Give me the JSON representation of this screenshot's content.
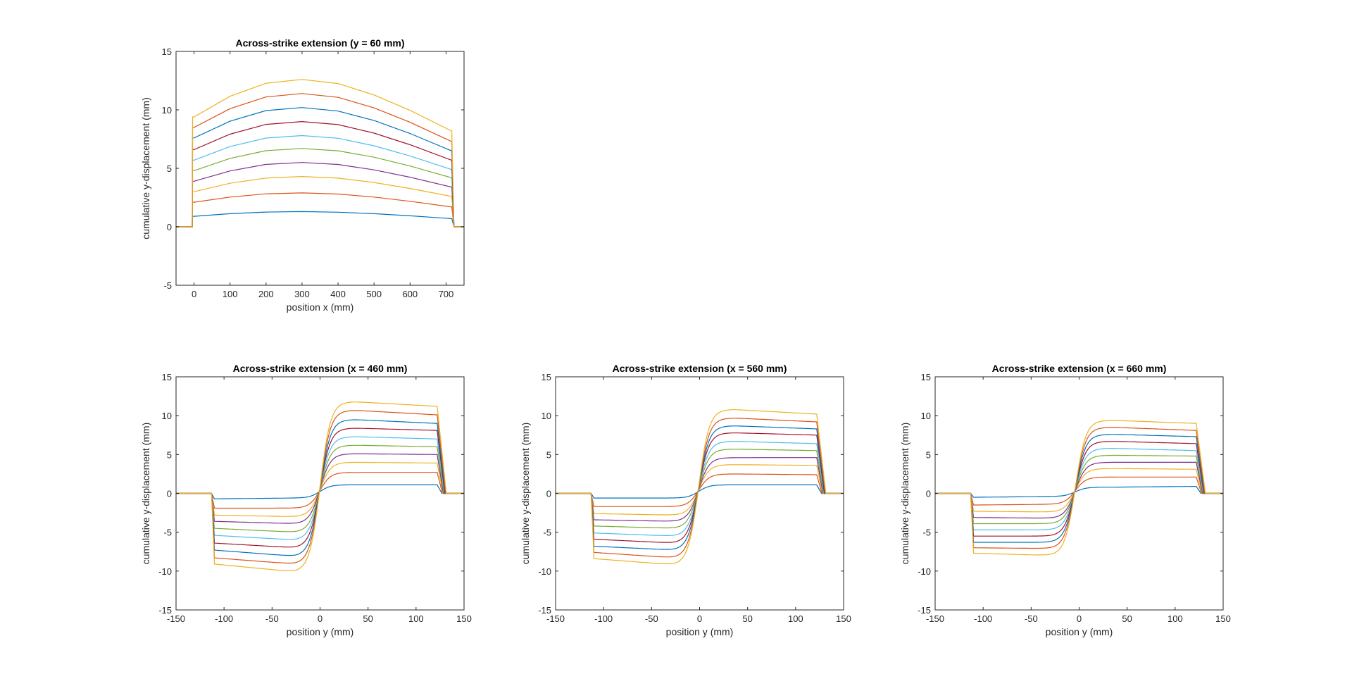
{
  "colors": [
    "#0072BD",
    "#D95319",
    "#EDB120",
    "#7E2F8E",
    "#77AC30",
    "#4DBEEE",
    "#A2142F",
    "#0072BD",
    "#D95319",
    "#EDB120"
  ],
  "chart_data": [
    {
      "type": "line",
      "title": "Across-strike extension (y = 60 mm)",
      "xlabel": "position x (mm)",
      "ylabel": "cumulative y-displacement (mm)",
      "xlim": [
        -50,
        750
      ],
      "ylim": [
        -5,
        15
      ],
      "xticks": [
        "0",
        "100",
        "200",
        "300",
        "400",
        "500",
        "600",
        "700"
      ],
      "xtick_values": [
        0,
        100,
        200,
        300,
        400,
        500,
        600,
        700
      ],
      "yticks": [
        "-5",
        "0",
        "5",
        "10",
        "15"
      ],
      "ytick_values": [
        -5,
        0,
        5,
        10,
        15
      ],
      "grid": false,
      "x": [
        -50,
        -5,
        -4,
        0,
        100,
        200,
        300,
        400,
        500,
        600,
        715,
        716,
        722,
        750
      ],
      "series": [
        {
          "y": [
            0,
            0,
            0.9,
            0.9,
            1.12,
            1.26,
            1.3,
            1.25,
            1.12,
            0.94,
            0.7,
            0.7,
            0,
            0
          ]
        },
        {
          "y": [
            0,
            0,
            2.1,
            2.1,
            2.54,
            2.82,
            2.9,
            2.8,
            2.54,
            2.18,
            1.7,
            1.7,
            0,
            0
          ]
        },
        {
          "y": [
            0,
            0,
            3.0,
            3.0,
            3.72,
            4.17,
            4.3,
            4.16,
            3.79,
            3.28,
            2.6,
            2.6,
            0,
            0
          ]
        },
        {
          "y": [
            0,
            0,
            3.9,
            3.9,
            4.78,
            5.34,
            5.5,
            5.33,
            4.87,
            4.24,
            3.4,
            3.4,
            0,
            0
          ]
        },
        {
          "y": [
            0,
            0,
            4.8,
            4.8,
            5.85,
            6.51,
            6.7,
            6.5,
            5.95,
            5.2,
            4.2,
            4.2,
            0,
            0
          ]
        },
        {
          "y": [
            0,
            0,
            5.7,
            5.7,
            6.86,
            7.59,
            7.8,
            7.57,
            6.93,
            6.06,
            4.9,
            4.9,
            0,
            0
          ]
        },
        {
          "y": [
            0,
            0,
            6.6,
            6.6,
            7.92,
            8.76,
            9.0,
            8.74,
            8.01,
            7.02,
            5.7,
            5.7,
            0,
            0
          ]
        },
        {
          "y": [
            0,
            0,
            7.6,
            7.6,
            9.03,
            9.94,
            10.2,
            9.9,
            9.09,
            7.98,
            6.5,
            6.5,
            0,
            0
          ]
        },
        {
          "y": [
            0,
            0,
            8.5,
            8.5,
            10.1,
            11.11,
            11.4,
            11.07,
            10.17,
            8.94,
            7.3,
            7.3,
            0,
            0
          ]
        },
        {
          "y": [
            0,
            0,
            9.4,
            9.4,
            11.16,
            12.28,
            12.6,
            12.25,
            11.28,
            9.96,
            8.2,
            8.2,
            0,
            0
          ]
        }
      ]
    },
    {
      "type": "line",
      "title": "Across-strike extension (x = 460 mm)",
      "xlabel": "position y (mm)",
      "ylabel": "cumulative y-displacement (mm)",
      "xlim": [
        -150,
        150
      ],
      "ylim": [
        -15,
        15
      ],
      "xticks": [
        "-150",
        "-100",
        "-50",
        "0",
        "50",
        "100",
        "150"
      ],
      "xtick_values": [
        -150,
        -100,
        -50,
        0,
        50,
        100,
        150
      ],
      "yticks": [
        "-15",
        "-10",
        "-5",
        "0",
        "5",
        "10",
        "15"
      ],
      "ytick_values": [
        -15,
        -10,
        -5,
        0,
        5,
        10,
        15
      ],
      "grid": false,
      "center_y": 0,
      "series_levels": {
        "left_edge": [
          -0.7,
          -1.9,
          -2.8,
          -3.6,
          -4.5,
          -5.4,
          -6.4,
          -7.3,
          -8.3,
          -9.1
        ],
        "left_inner": [
          -0.6,
          -1.9,
          -3.0,
          -3.9,
          -5.0,
          -6.0,
          -7.0,
          -8.1,
          -9.1,
          -10.1
        ],
        "right_inner": [
          1.1,
          2.7,
          4.0,
          5.1,
          6.2,
          7.3,
          8.4,
          9.5,
          10.7,
          11.8
        ],
        "right_edge": [
          1.1,
          2.7,
          3.9,
          5.0,
          6.0,
          7.0,
          8.1,
          9.0,
          10.1,
          11.2
        ]
      }
    },
    {
      "type": "line",
      "title": "Across-strike extension (x = 560 mm)",
      "xlabel": "position y (mm)",
      "ylabel": "cumulative y-displacement (mm)",
      "xlim": [
        -150,
        150
      ],
      "ylim": [
        -15,
        15
      ],
      "xticks": [
        "-150",
        "-100",
        "-50",
        "0",
        "50",
        "100",
        "150"
      ],
      "xtick_values": [
        -150,
        -100,
        -50,
        0,
        50,
        100,
        150
      ],
      "yticks": [
        "-15",
        "-10",
        "-5",
        "0",
        "5",
        "10",
        "15"
      ],
      "ytick_values": [
        -15,
        -10,
        -5,
        0,
        5,
        10,
        15
      ],
      "grid": false,
      "center_y": -1,
      "series_levels": {
        "left_edge": [
          -0.6,
          -1.7,
          -2.6,
          -3.4,
          -4.2,
          -5.1,
          -5.9,
          -6.8,
          -7.6,
          -8.4
        ],
        "left_inner": [
          -0.6,
          -1.7,
          -2.8,
          -3.6,
          -4.5,
          -5.5,
          -6.4,
          -7.3,
          -8.3,
          -9.2
        ],
        "right_inner": [
          1.1,
          2.5,
          3.7,
          4.6,
          5.7,
          6.7,
          7.8,
          8.7,
          9.7,
          10.8
        ],
        "right_edge": [
          1.1,
          2.4,
          3.6,
          4.6,
          5.5,
          6.4,
          7.5,
          8.3,
          9.2,
          10.2
        ]
      }
    },
    {
      "type": "line",
      "title": "Across-strike extension (x = 660 mm)",
      "xlabel": "position y (mm)",
      "ylabel": "cumulative y-displacement (mm)",
      "xlim": [
        -150,
        150
      ],
      "ylim": [
        -15,
        15
      ],
      "xticks": [
        "-150",
        "-100",
        "-50",
        "0",
        "50",
        "100",
        "150"
      ],
      "xtick_values": [
        -150,
        -100,
        -50,
        0,
        50,
        100,
        150
      ],
      "yticks": [
        "-15",
        "-10",
        "-5",
        "0",
        "5",
        "10",
        "15"
      ],
      "ytick_values": [
        -15,
        -10,
        -5,
        0,
        5,
        10,
        15
      ],
      "grid": false,
      "center_y": -4,
      "series_levels": {
        "left_edge": [
          -0.5,
          -1.5,
          -2.3,
          -3.1,
          -3.9,
          -4.7,
          -5.5,
          -6.3,
          -7.0,
          -7.7
        ],
        "left_inner": [
          -0.4,
          -1.4,
          -2.4,
          -3.2,
          -3.9,
          -4.7,
          -5.5,
          -6.3,
          -7.1,
          -8.0
        ],
        "right_inner": [
          0.8,
          2.1,
          3.2,
          4.0,
          4.9,
          5.8,
          6.7,
          7.6,
          8.5,
          9.4
        ],
        "right_edge": [
          0.9,
          2.1,
          3.1,
          4.0,
          4.8,
          5.5,
          6.4,
          7.3,
          8.1,
          9.0
        ]
      }
    }
  ]
}
